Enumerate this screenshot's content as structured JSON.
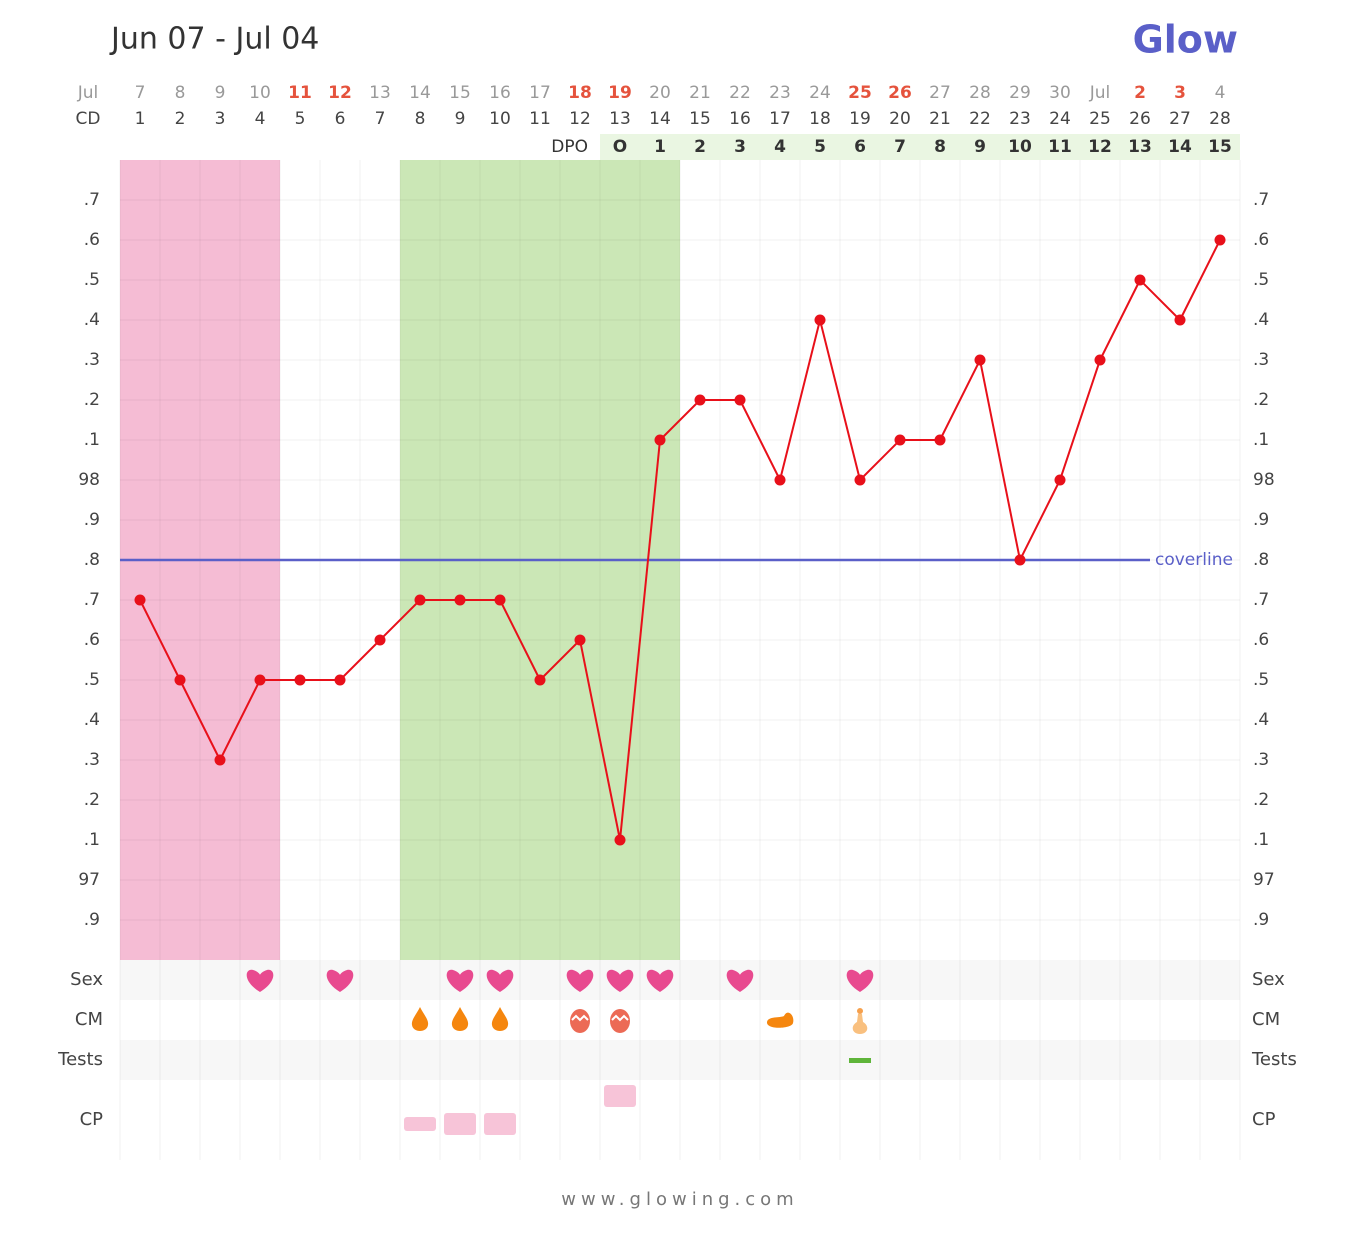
{
  "chart_data": {
    "type": "line",
    "title": "Jun 07 - Jul 04",
    "logo": "Glow",
    "footer": "www.glowing.com",
    "month_label": "Jul",
    "cd_label": "CD",
    "dpo_label": "DPO",
    "categories": [
      "7",
      "8",
      "9",
      "10",
      "11",
      "12",
      "13",
      "14",
      "15",
      "16",
      "17",
      "18",
      "19",
      "20",
      "21",
      "22",
      "23",
      "24",
      "25",
      "26",
      "27",
      "28",
      "29",
      "30",
      "Jul",
      "2",
      "3",
      "4"
    ],
    "weekend": [
      false,
      false,
      false,
      false,
      true,
      true,
      false,
      false,
      false,
      false,
      false,
      true,
      true,
      false,
      false,
      false,
      false,
      false,
      true,
      true,
      false,
      false,
      false,
      false,
      false,
      true,
      true,
      false
    ],
    "cycle_days": [
      1,
      2,
      3,
      4,
      5,
      6,
      7,
      8,
      9,
      10,
      11,
      12,
      13,
      14,
      15,
      16,
      17,
      18,
      19,
      20,
      21,
      22,
      23,
      24,
      25,
      26,
      27,
      28
    ],
    "dpo": [
      "O",
      1,
      2,
      3,
      4,
      5,
      6,
      7,
      8,
      9,
      10,
      11,
      12,
      13,
      14,
      15
    ],
    "ovulation_day": 13,
    "period": [
      1,
      4
    ],
    "fertile": [
      8,
      14
    ],
    "series": [
      {
        "name": "BBT",
        "color": "#e8101a",
        "values": [
          97.7,
          97.5,
          97.3,
          97.5,
          97.5,
          97.5,
          97.6,
          97.7,
          97.7,
          97.7,
          97.5,
          97.6,
          97.1,
          98.1,
          98.2,
          98.2,
          98.0,
          98.4,
          98.0,
          98.1,
          98.1,
          98.3,
          97.8,
          98.0,
          98.3,
          98.5,
          98.4,
          98.6
        ]
      }
    ],
    "coverline": {
      "value": 97.8,
      "label": "coverline",
      "color": "#5a5fc8"
    },
    "ylim": [
      96.8,
      98.8
    ],
    "yticks": [
      {
        "value": 96.9,
        "label": ".9"
      },
      97,
      {
        "value": 97.1,
        "label": ".1"
      },
      {
        "value": 97.2,
        "label": ".2"
      },
      {
        "value": 97.3,
        "label": ".3"
      },
      {
        "value": 97.4,
        "label": ".4"
      },
      {
        "value": 97.5,
        "label": ".5"
      },
      {
        "value": 97.6,
        "label": ".6"
      },
      {
        "value": 97.7,
        "label": ".7"
      },
      {
        "value": 97.8,
        "label": ".8"
      },
      {
        "value": 97.9,
        "label": ".9"
      },
      98,
      {
        "value": 98.1,
        "label": ".1"
      },
      {
        "value": 98.2,
        "label": ".2"
      },
      {
        "value": 98.3,
        "label": ".3"
      },
      {
        "value": 98.4,
        "label": ".4"
      },
      {
        "value": 98.5,
        "label": ".5"
      },
      {
        "value": 98.6,
        "label": ".6"
      },
      {
        "value": 98.7,
        "label": ".7"
      }
    ],
    "grid": true,
    "rows": {
      "sex": {
        "label": "Sex",
        "days": [
          4,
          6,
          9,
          10,
          12,
          13,
          14,
          16,
          19
        ]
      },
      "cm": {
        "label": "CM",
        "items": [
          {
            "day": 8,
            "kind": "drop"
          },
          {
            "day": 9,
            "kind": "drop"
          },
          {
            "day": 10,
            "kind": "drop"
          },
          {
            "day": 12,
            "kind": "egg"
          },
          {
            "day": 13,
            "kind": "egg"
          },
          {
            "day": 17,
            "kind": "creamy"
          },
          {
            "day": 19,
            "kind": "sticky"
          }
        ]
      },
      "tests": {
        "label": "Tests",
        "days": [
          19
        ]
      },
      "cp": {
        "label": "CP",
        "items": [
          {
            "day": 8,
            "kind": "low"
          },
          {
            "day": 9,
            "kind": "mid"
          },
          {
            "day": 10,
            "kind": "mid"
          },
          {
            "day": 13,
            "kind": "high"
          }
        ]
      }
    }
  }
}
